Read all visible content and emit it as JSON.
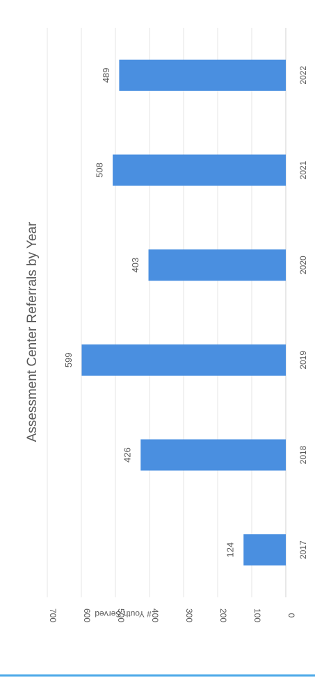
{
  "chart_data": {
    "type": "bar",
    "orientation": "vertical (image rotated 90° clockwise)",
    "title": "Assessment Center Referrals by Year",
    "xlabel": "",
    "ylabel": "# Youth Served",
    "categories": [
      "2017",
      "2018",
      "2019",
      "2020",
      "2021",
      "2022"
    ],
    "values": [
      124,
      426,
      599,
      403,
      508,
      489
    ],
    "data_labels": [
      "124",
      "426",
      "599",
      "403",
      "508",
      "489"
    ],
    "y_ticks": [
      "0",
      "100",
      "200",
      "300",
      "400",
      "500",
      "600",
      "700"
    ],
    "ylim": [
      0,
      700
    ],
    "grid": true,
    "legend": "none",
    "bar_color": "#4a8fe0",
    "grid_color": "#e4e4e4",
    "text_color": "#595959",
    "title_color": "#595959"
  }
}
